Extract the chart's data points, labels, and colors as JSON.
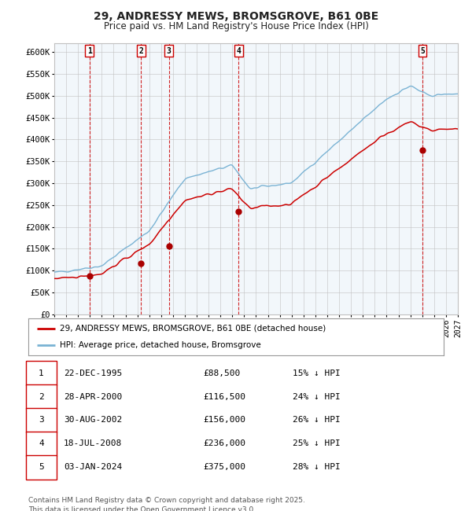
{
  "title": "29, ANDRESSY MEWS, BROMSGROVE, B61 0BE",
  "subtitle": "Price paid vs. HM Land Registry's House Price Index (HPI)",
  "ylim": [
    0,
    620000
  ],
  "yticks": [
    0,
    50000,
    100000,
    150000,
    200000,
    250000,
    300000,
    350000,
    400000,
    450000,
    500000,
    550000,
    600000
  ],
  "ytick_labels": [
    "£0",
    "£50K",
    "£100K",
    "£150K",
    "£200K",
    "£250K",
    "£300K",
    "£350K",
    "£400K",
    "£450K",
    "£500K",
    "£550K",
    "£600K"
  ],
  "xlim_start": 1993.0,
  "xlim_end": 2027.0,
  "hpi_color": "#7ab3d4",
  "price_color": "#cc0000",
  "sale_marker_color": "#aa0000",
  "vline_color": "#cc0000",
  "shade_color": "#cce0f0",
  "grid_color": "#c0c0c0",
  "background_color": "#ffffff",
  "sales": [
    {
      "num": 1,
      "date_str": "22-DEC-1995",
      "date_x": 1995.97,
      "price": 88500
    },
    {
      "num": 2,
      "date_str": "28-APR-2000",
      "date_x": 2000.32,
      "price": 116500
    },
    {
      "num": 3,
      "date_str": "30-AUG-2002",
      "date_x": 2002.66,
      "price": 156000
    },
    {
      "num": 4,
      "date_str": "18-JUL-2008",
      "date_x": 2008.54,
      "price": 236000
    },
    {
      "num": 5,
      "date_str": "03-JAN-2024",
      "date_x": 2024.01,
      "price": 375000
    }
  ],
  "legend_entries": [
    {
      "label": "29, ANDRESSY MEWS, BROMSGROVE, B61 0BE (detached house)",
      "color": "#cc0000"
    },
    {
      "label": "HPI: Average price, detached house, Bromsgrove",
      "color": "#7ab3d4"
    }
  ],
  "footer": "Contains HM Land Registry data © Crown copyright and database right 2025.\nThis data is licensed under the Open Government Licence v3.0.",
  "table_rows": [
    {
      "num": 1,
      "date": "22-DEC-1995",
      "price": "£88,500",
      "pct": "15% ↓ HPI"
    },
    {
      "num": 2,
      "date": "28-APR-2000",
      "price": "£116,500",
      "pct": "24% ↓ HPI"
    },
    {
      "num": 3,
      "date": "30-AUG-2002",
      "price": "£156,000",
      "pct": "26% ↓ HPI"
    },
    {
      "num": 4,
      "date": "18-JUL-2008",
      "price": "£236,000",
      "pct": "25% ↓ HPI"
    },
    {
      "num": 5,
      "date": "03-JAN-2024",
      "price": "£375,000",
      "pct": "28% ↓ HPI"
    }
  ]
}
